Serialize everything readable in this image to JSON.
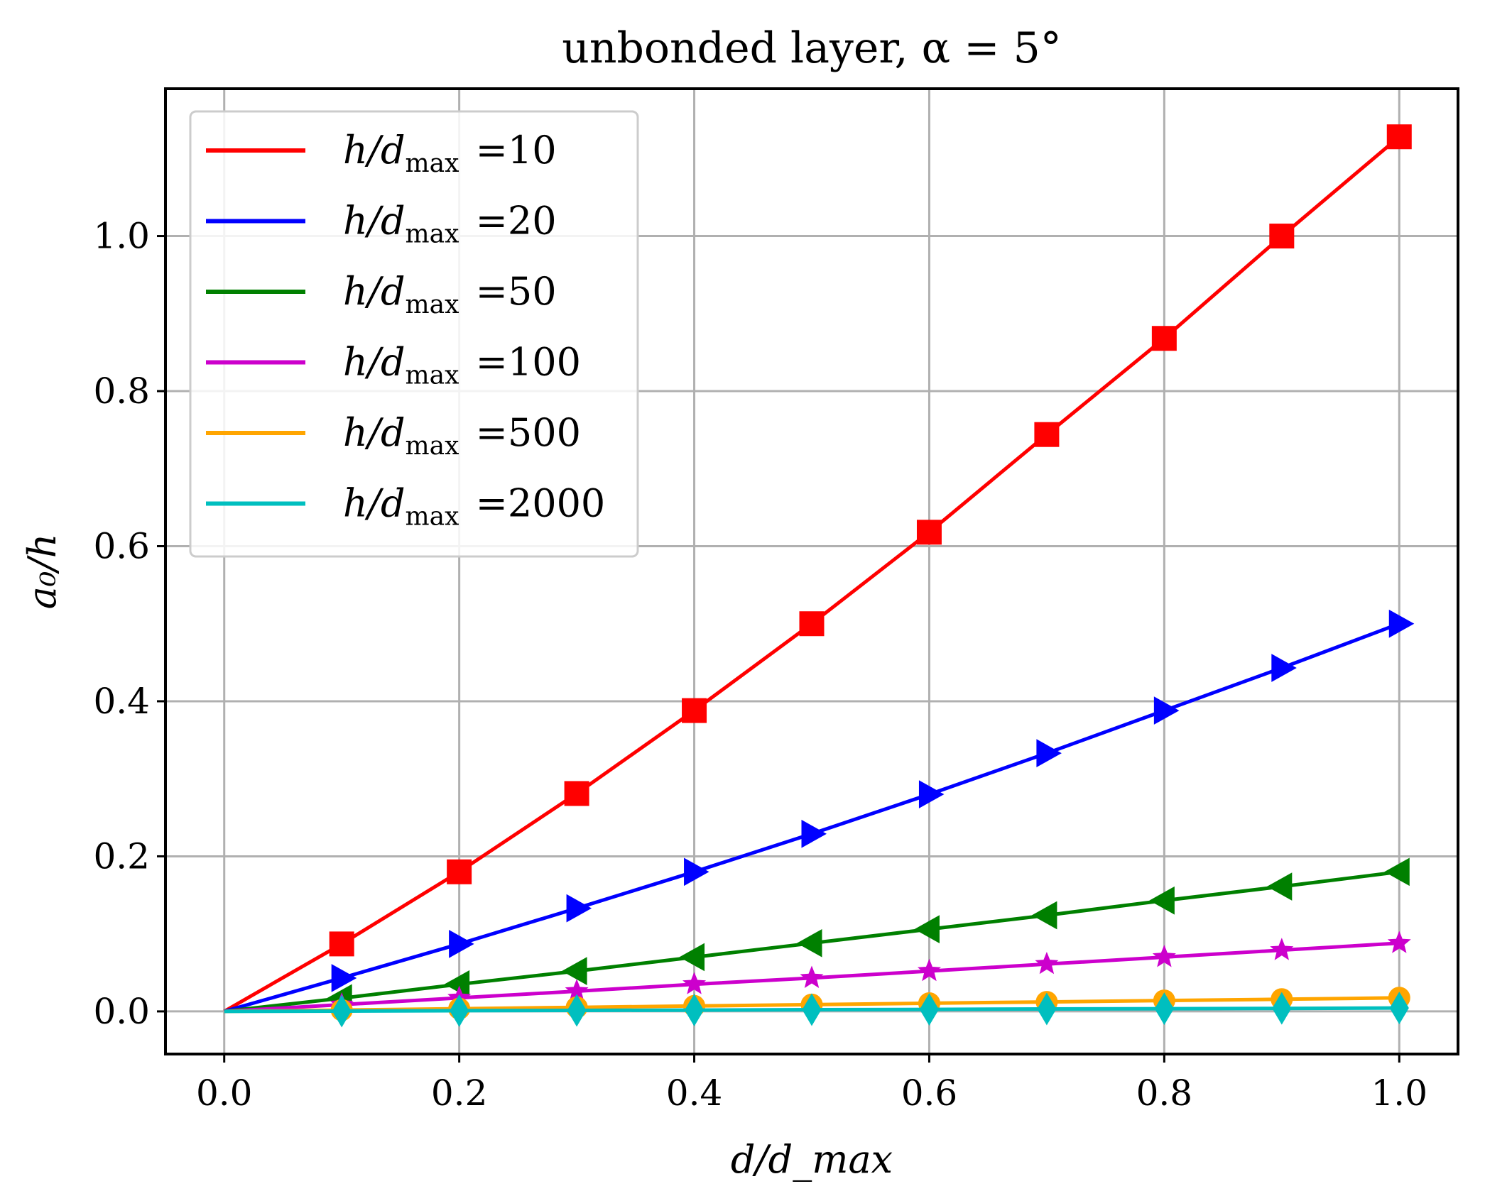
{
  "chart_data": {
    "type": "line",
    "title": "unbonded layer, α = 5°",
    "xlabel": "d/d_max",
    "ylabel": "a₀/h",
    "xlim": [
      -0.05,
      1.05
    ],
    "ylim": [
      -0.055,
      1.19
    ],
    "grid": true,
    "legend_position": "top-left",
    "x_ticks": [
      0.0,
      0.2,
      0.4,
      0.6,
      0.8,
      1.0
    ],
    "x_tick_labels": [
      "0.0",
      "0.2",
      "0.4",
      "0.6",
      "0.8",
      "1.0"
    ],
    "y_ticks": [
      0.0,
      0.2,
      0.4,
      0.6,
      0.8,
      1.0
    ],
    "y_tick_labels": [
      "0.0",
      "0.2",
      "0.4",
      "0.6",
      "0.8",
      "1.0"
    ],
    "x": [
      0.0,
      0.1,
      0.2,
      0.3,
      0.4,
      0.5,
      0.6,
      0.7,
      0.8,
      0.9,
      1.0
    ],
    "series": [
      {
        "name": "h/d_max =10",
        "label_prefix": "h/d",
        "label_sub": "max",
        "label_value": "=10",
        "color": "#ff0000",
        "marker": "square",
        "values": [
          0.0,
          0.087,
          0.18,
          0.281,
          0.388,
          0.5,
          0.618,
          0.744,
          0.868,
          1.0,
          1.128
        ]
      },
      {
        "name": "h/d_max =20",
        "label_prefix": "h/d",
        "label_sub": "max",
        "label_value": "=20",
        "color": "#0000ff",
        "marker": "triangle-right",
        "values": [
          0.0,
          0.043,
          0.087,
          0.133,
          0.18,
          0.229,
          0.28,
          0.333,
          0.388,
          0.443,
          0.5
        ]
      },
      {
        "name": "h/d_max =50",
        "label_prefix": "h/d",
        "label_sub": "max",
        "label_value": "=50",
        "color": "#008000",
        "marker": "triangle-left",
        "values": [
          0.0,
          0.017,
          0.035,
          0.052,
          0.07,
          0.088,
          0.106,
          0.124,
          0.143,
          0.161,
          0.18
        ]
      },
      {
        "name": "h/d_max =100",
        "label_prefix": "h/d",
        "label_sub": "max",
        "label_value": "=100",
        "color": "#cc00cc",
        "marker": "star",
        "values": [
          0.0,
          0.0087,
          0.0174,
          0.026,
          0.035,
          0.043,
          0.052,
          0.061,
          0.07,
          0.079,
          0.088
        ]
      },
      {
        "name": "h/d_max =500",
        "label_prefix": "h/d",
        "label_sub": "max",
        "label_value": "=500",
        "color": "#ffa500",
        "marker": "circle",
        "values": [
          0.0,
          0.0017,
          0.0035,
          0.0052,
          0.007,
          0.0087,
          0.0105,
          0.0122,
          0.014,
          0.0157,
          0.0175
        ]
      },
      {
        "name": "h/d_max =2000",
        "label_prefix": "h/d",
        "label_sub": "max",
        "label_value": "=2000",
        "color": "#00bfbf",
        "marker": "diamond",
        "values": [
          0.0,
          0.0004,
          0.0009,
          0.0013,
          0.0017,
          0.0022,
          0.0026,
          0.0031,
          0.0035,
          0.0039,
          0.0044
        ]
      }
    ]
  }
}
